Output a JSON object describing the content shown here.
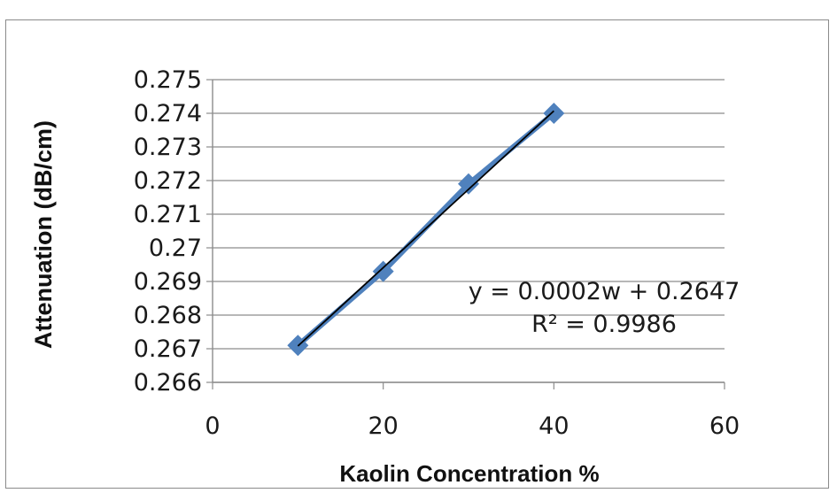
{
  "chart_data": {
    "type": "scatter",
    "xlabel": "Kaolin Concentration %",
    "ylabel": "Attenuation (dB/cm)",
    "xlim": [
      0,
      60
    ],
    "ylim": [
      0.266,
      0.275
    ],
    "x_ticks": [
      0,
      20,
      40,
      60
    ],
    "x_tick_labels": [
      "0",
      "20",
      "40",
      "60"
    ],
    "y_ticks": [
      0.266,
      0.267,
      0.268,
      0.269,
      0.27,
      0.271,
      0.272,
      0.273,
      0.274,
      0.275
    ],
    "y_tick_labels": [
      "0.266",
      "0.267",
      "0.268",
      "0.269",
      "0.27",
      "0.271",
      "0.272",
      "0.273",
      "0.274",
      "0.275"
    ],
    "grid": "horizontal",
    "series": [
      {
        "x": [
          10,
          20,
          30,
          40
        ],
        "y": [
          0.2671,
          0.2693,
          0.2719,
          0.274
        ],
        "color": "#4f81bd",
        "marker": "diamond"
      }
    ],
    "trendline": {
      "type": "linear",
      "color": "#000000"
    },
    "annotations": {
      "equation": "y = 0.0002w + 0.2647",
      "r_squared": "R² = 0.9986"
    }
  }
}
